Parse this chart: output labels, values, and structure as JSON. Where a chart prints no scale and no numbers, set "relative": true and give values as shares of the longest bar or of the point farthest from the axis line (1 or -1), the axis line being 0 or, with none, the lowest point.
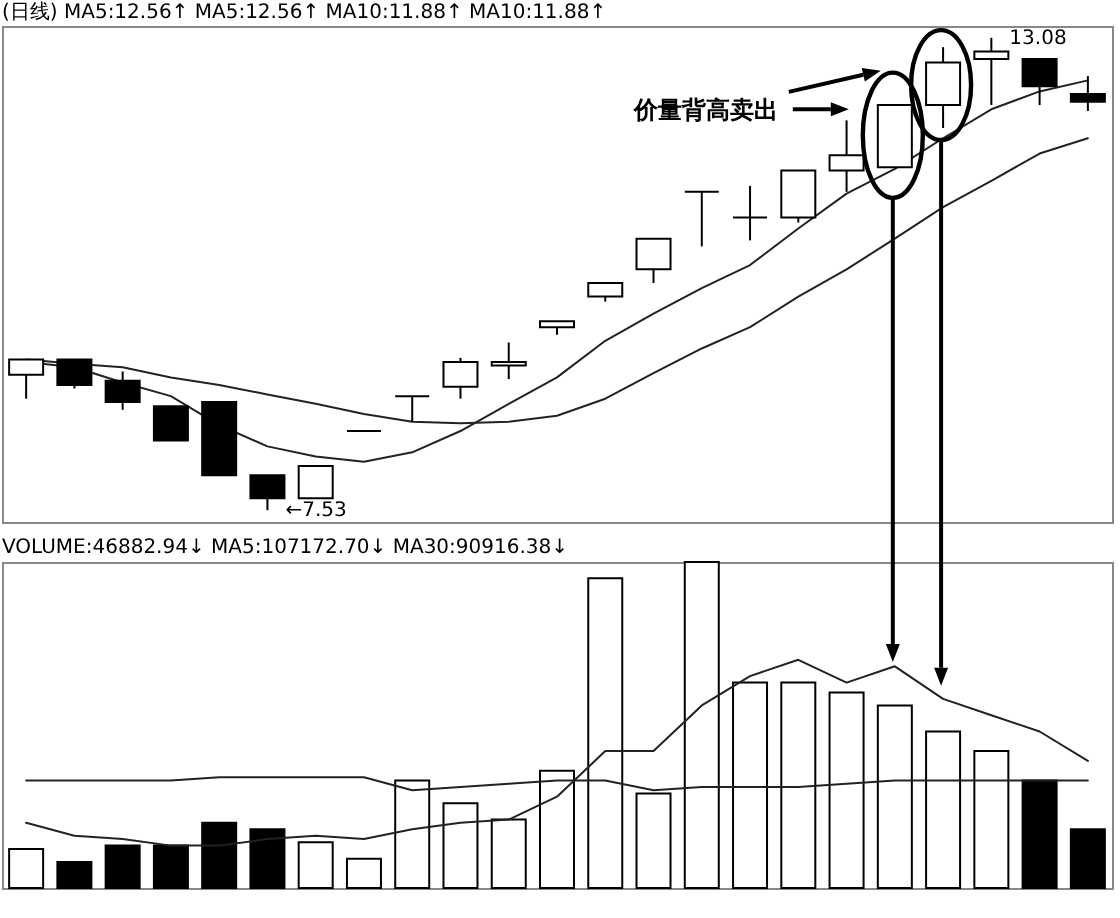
{
  "chart_data": [
    {
      "type": "candlestick",
      "title": "(日线) MA5:12.56↑ MA5:12.56↑ MA10:11.88↑ MA10:11.88↑",
      "categories": [
        null,
        null,
        null,
        null,
        null,
        null,
        null,
        null,
        null,
        null,
        null,
        null,
        null,
        null,
        null,
        null,
        null,
        null,
        null,
        null,
        null,
        null,
        null
      ],
      "ohlc": [
        [
          9.12,
          9.3,
          8.84,
          9.3
        ],
        [
          9.3,
          9.3,
          8.96,
          9.0
        ],
        [
          9.05,
          9.16,
          8.71,
          8.8
        ],
        [
          8.75,
          8.75,
          8.35,
          8.35
        ],
        [
          8.8,
          8.8,
          7.94,
          7.94
        ],
        [
          7.94,
          7.94,
          7.53,
          7.67
        ],
        [
          7.67,
          8.05,
          7.67,
          8.05
        ],
        [
          8.46,
          8.46,
          8.46,
          8.46
        ],
        [
          8.87,
          8.87,
          8.57,
          8.87
        ],
        [
          8.98,
          9.32,
          8.84,
          9.27
        ],
        [
          9.23,
          9.5,
          9.07,
          9.27
        ],
        [
          9.68,
          9.75,
          9.59,
          9.75
        ],
        [
          10.04,
          10.2,
          9.98,
          10.2
        ],
        [
          10.36,
          10.72,
          10.2,
          10.72
        ],
        [
          11.27,
          11.27,
          10.63,
          11.27
        ],
        [
          10.97,
          11.34,
          10.7,
          10.97
        ],
        [
          10.97,
          11.52,
          10.91,
          11.52
        ],
        [
          11.52,
          12.11,
          11.27,
          11.7
        ],
        [
          11.56,
          12.29,
          11.56,
          12.29
        ],
        [
          12.29,
          12.97,
          12.02,
          12.79
        ],
        [
          12.83,
          13.08,
          12.29,
          12.92
        ],
        [
          12.83,
          12.83,
          12.29,
          12.51
        ],
        [
          12.42,
          12.63,
          12.22,
          12.33
        ]
      ],
      "colors": [
        "#ffffff",
        "#000000",
        "#000000",
        "#000000",
        "#000000",
        "#000000",
        "#ffffff",
        "#000000",
        "#000000",
        "#ffffff",
        "#ffffff",
        "#ffffff",
        "#ffffff",
        "#ffffff",
        "#000000",
        "#000000",
        "#ffffff",
        "#ffffff",
        "#ffffff",
        "#ffffff",
        "#ffffff",
        "#000000",
        "#000000"
      ],
      "series": [
        {
          "type": "line",
          "color": "#222222",
          "values": [
            9.27,
            9.21,
            9.03,
            8.87,
            8.53,
            8.28,
            8.16,
            8.1,
            8.21,
            8.46,
            8.78,
            9.09,
            9.52,
            9.84,
            10.14,
            10.41,
            10.84,
            11.25,
            11.54,
            11.9,
            12.24,
            12.45,
            12.58
          ]
        },
        {
          "type": "line",
          "color": "#222222",
          "values": [
            9.3,
            9.25,
            9.21,
            9.09,
            9.0,
            8.89,
            8.78,
            8.66,
            8.57,
            8.55,
            8.57,
            8.64,
            8.84,
            9.14,
            9.43,
            9.68,
            10.04,
            10.36,
            10.72,
            11.09,
            11.4,
            11.72,
            11.9
          ]
        }
      ],
      "annotations": [
        "13.08",
        "←7.53",
        "价量背高卖出"
      ]
    },
    {
      "type": "bar",
      "relative": true,
      "title": "VOLUME:46882.94↓ MA5:107172.70↓ MA30:90916.38↓",
      "categories": [
        null,
        null,
        null,
        null,
        null,
        null,
        null,
        null,
        null,
        null,
        null,
        null,
        null,
        null,
        null,
        null,
        null,
        null,
        null,
        null,
        null,
        null,
        null
      ],
      "series": [
        {
          "colors": [
            "#ffffff",
            "#000000",
            "#000000",
            "#000000",
            "#000000",
            "#000000",
            "#ffffff",
            "#ffffff",
            "#ffffff",
            "#ffffff",
            "#ffffff",
            "#ffffff",
            "#ffffff",
            "#ffffff",
            "#ffffff",
            "#ffffff",
            "#ffffff",
            "#ffffff",
            "#ffffff",
            "#ffffff",
            "#ffffff",
            "#000000",
            "#000000"
          ],
          "values": [
            0.12,
            0.08,
            0.13,
            0.13,
            0.2,
            0.18,
            0.14,
            0.09,
            0.33,
            0.26,
            0.21,
            0.36,
            0.95,
            0.29,
            1,
            0.63,
            0.63,
            0.6,
            0.56,
            0.48,
            0.42,
            0.33,
            0.18
          ]
        },
        {
          "type": "line",
          "color": "#222222",
          "values": [
            0.2,
            0.16,
            0.15,
            0.13,
            0.13,
            0.15,
            0.16,
            0.15,
            0.18,
            0.2,
            0.21,
            0.28,
            0.42,
            0.42,
            0.56,
            0.65,
            0.7,
            0.63,
            0.68,
            0.58,
            0.53,
            0.48,
            0.39
          ]
        },
        {
          "type": "line",
          "color": "#222222",
          "values": [
            0.33,
            0.33,
            0.33,
            0.33,
            0.34,
            0.34,
            0.34,
            0.34,
            0.3,
            0.31,
            0.32,
            0.33,
            0.33,
            0.3,
            0.31,
            0.31,
            0.31,
            0.32,
            0.33,
            0.33,
            0.33,
            0.33,
            0.33
          ]
        }
      ]
    }
  ]
}
